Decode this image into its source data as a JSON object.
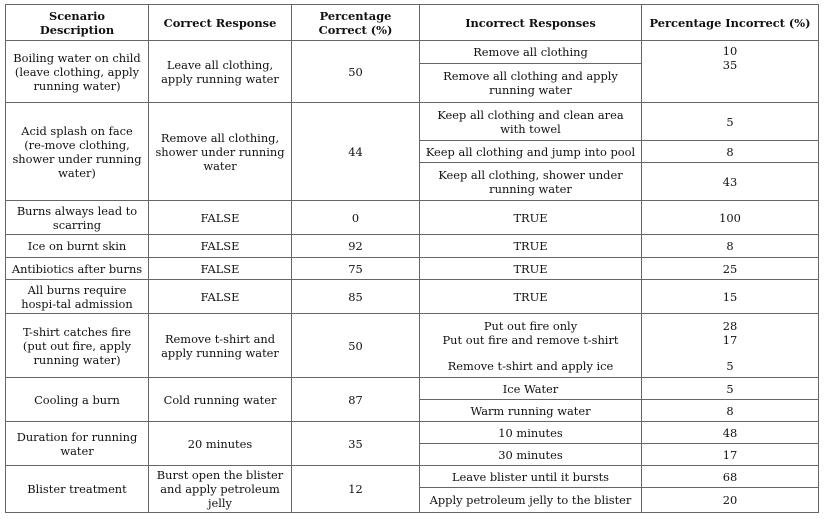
{
  "headers": {
    "scenario": "Scenario Description",
    "correct": "Correct Response",
    "pct_correct": "Percentage Correct (%)",
    "incorrect": "Incorrect Responses",
    "pct_incorrect": "Percentage Incorrect (%)"
  },
  "rows": [
    {
      "scenario": "Boiling water on child (leave clothing, apply running water)",
      "correct": "Leave all clothing, apply running water",
      "pct_correct": "50",
      "incorrect": [
        "Remove all clothing",
        "Remove all clothing and apply running water"
      ],
      "pct_incorrect": [
        "10",
        "35"
      ]
    },
    {
      "scenario": "Acid splash on face (re-move clothing, shower under running water)",
      "correct": "Remove all clothing, shower under running water",
      "pct_correct": "44",
      "incorrect": [
        "Keep all clothing and clean area with towel",
        "Keep all clothing and jump into pool",
        "Keep all clothing, shower under running water"
      ],
      "pct_incorrect": [
        "5",
        "8",
        "43"
      ]
    },
    {
      "scenario": "Burns always lead to scarring",
      "correct": "FALSE",
      "pct_correct": "0",
      "incorrect": [
        "TRUE"
      ],
      "pct_incorrect": [
        "100"
      ]
    },
    {
      "scenario": "Ice on burnt skin",
      "correct": "FALSE",
      "pct_correct": "92",
      "incorrect": [
        "TRUE"
      ],
      "pct_incorrect": [
        "8"
      ]
    },
    {
      "scenario": "Antibiotics after burns",
      "correct": "FALSE",
      "pct_correct": "75",
      "incorrect": [
        "TRUE"
      ],
      "pct_incorrect": [
        "25"
      ]
    },
    {
      "scenario": "All burns require hospi-tal admission",
      "correct": "FALSE",
      "pct_correct": "85",
      "incorrect": [
        "TRUE"
      ],
      "pct_incorrect": [
        "15"
      ]
    },
    {
      "scenario": "T-shirt catches fire (put out fire, apply running water)",
      "correct": "Remove t-shirt and apply running water",
      "pct_correct": "50",
      "incorrect": [
        "Put out fire only",
        "Put out fire and remove t-shirt",
        "Remove t-shirt and apply ice"
      ],
      "pct_incorrect": [
        "28",
        "17",
        "5"
      ]
    },
    {
      "scenario": "Cooling a burn",
      "correct": "Cold running water",
      "pct_correct": "87",
      "incorrect": [
        "Ice Water",
        "Warm running water"
      ],
      "pct_incorrect": [
        "5",
        "8"
      ]
    },
    {
      "scenario": "Duration for running water",
      "correct": "20 minutes",
      "pct_correct": "35",
      "incorrect": [
        "10 minutes",
        "30 minutes"
      ],
      "pct_incorrect": [
        "48",
        "17"
      ]
    },
    {
      "scenario": "Blister treatment",
      "correct": "Burst open the blister and apply petroleum jelly",
      "pct_correct": "12",
      "incorrect": [
        "Leave blister until it bursts",
        "Apply petroleum jelly to the blister"
      ],
      "pct_incorrect": [
        "68",
        "20"
      ]
    }
  ]
}
